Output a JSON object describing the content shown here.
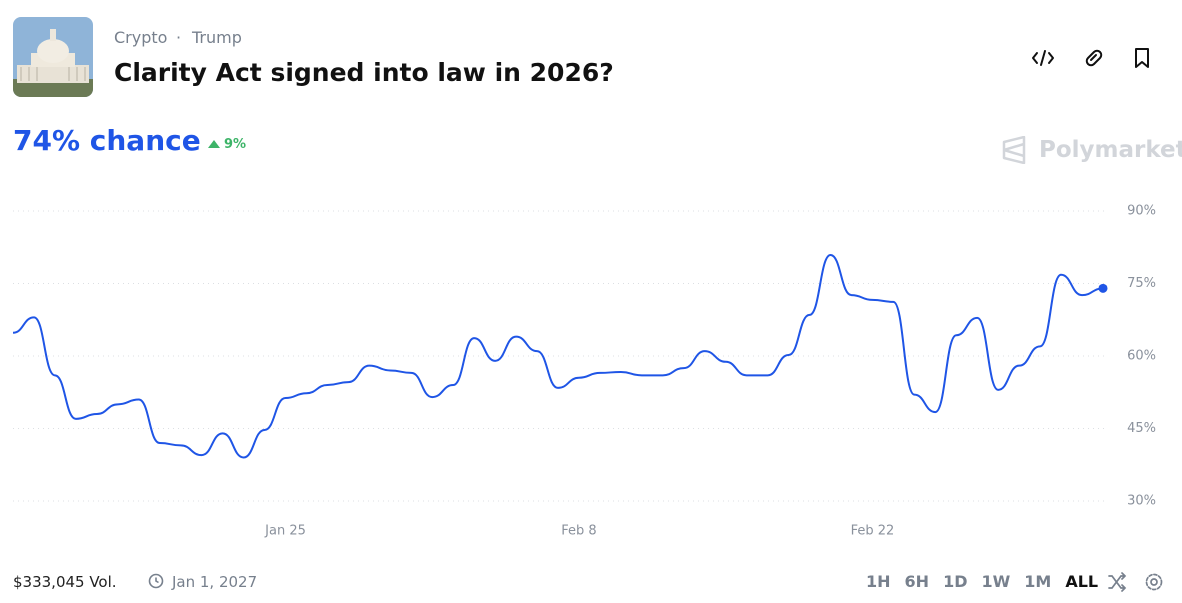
{
  "header": {
    "breadcrumbs": [
      "Crypto",
      "Trump"
    ],
    "separator": "·",
    "title": "Clarity Act signed into law in 2026?"
  },
  "summary": {
    "chance_label": "74% chance",
    "change_label": "9%",
    "brand": "Polymarket"
  },
  "footer": {
    "volume": "$333,045 Vol.",
    "end_date": "Jan 1, 2027",
    "ranges": [
      "1H",
      "6H",
      "1D",
      "1W",
      "1M",
      "ALL"
    ]
  },
  "chart_data": {
    "type": "line",
    "categories": [
      null,
      null,
      null,
      null,
      null,
      null,
      null,
      null,
      null,
      null,
      null,
      null,
      null,
      "Jan 25",
      null,
      null,
      null,
      null,
      null,
      null,
      null,
      null,
      null,
      null,
      null,
      null,
      null,
      "Feb 8",
      null,
      null,
      null,
      null,
      null,
      null,
      null,
      null,
      null,
      null,
      null,
      null,
      null,
      "Feb 22",
      null,
      null,
      null,
      null,
      null,
      null,
      null,
      null,
      null,
      null,
      null
    ],
    "series": [
      {
        "color": "#1f55e6",
        "values": [
          64.8,
          68,
          56,
          47,
          48,
          50,
          51,
          42,
          41.5,
          39.5,
          44,
          39,
          44.7,
          51.3,
          52.3,
          54,
          54.6,
          58,
          57,
          56.5,
          51.5,
          54,
          63.7,
          59,
          64,
          61,
          53.4,
          55.5,
          56.5,
          56.7,
          56,
          56,
          57.5,
          61,
          58.8,
          56,
          56,
          60.2,
          68.5,
          80.9,
          72.6,
          71.6,
          71.2,
          52,
          48.4,
          64.3,
          67.9,
          53,
          58,
          62,
          76.8,
          72.6,
          74
        ]
      }
    ],
    "ylim": [
      30,
      90
    ],
    "yticks": [
      {
        "value": 30,
        "label": "30%"
      },
      {
        "value": 45,
        "label": "45%"
      },
      {
        "value": 60,
        "label": "60%"
      },
      {
        "value": 75,
        "label": "75%"
      },
      {
        "value": 90,
        "label": "90%"
      }
    ],
    "grid": true
  }
}
